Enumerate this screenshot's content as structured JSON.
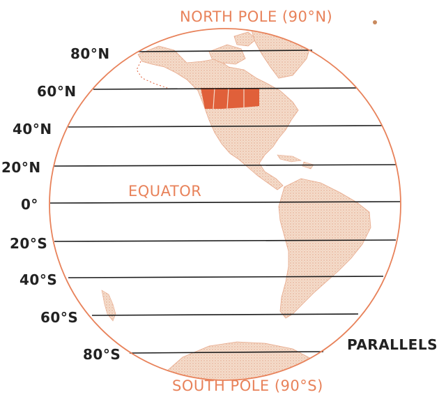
{
  "diagram": {
    "top_label": "NORTH POLE (90°N)",
    "bottom_label": "SOUTH POLE (90°S)",
    "equator_label": "EQUATOR",
    "parallels_label": "PARALLELS",
    "latitudes": [
      "80°N",
      "60°N",
      "40°N",
      "20°N",
      "0°",
      "20°S",
      "40°S",
      "60°S",
      "80°S"
    ]
  },
  "colors": {
    "globe_outline": "#e8825a",
    "label_orange": "#e8825a",
    "land_fill": "#f3d6c3",
    "land_stipple": "#e3a88a",
    "highlight_region": "#e0603a",
    "line": "#1a1a1a",
    "text_dark": "#222222"
  }
}
